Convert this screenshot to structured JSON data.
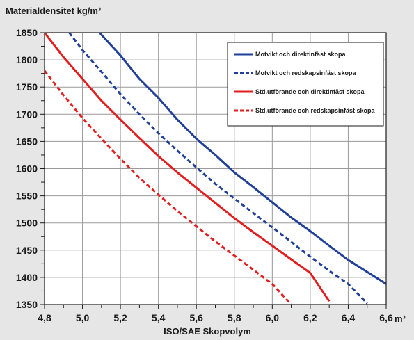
{
  "chart_data": {
    "type": "line",
    "ylabel": "Materialdensitet kg/m³",
    "xlabel": "ISO/SAE Skopvolym",
    "x_unit": "m³",
    "xlim": [
      4.8,
      6.6
    ],
    "ylim": [
      1350,
      1850
    ],
    "x_ticks": [
      "4,8",
      "5,0",
      "5,2",
      "5,4",
      "5,6",
      "5,8",
      "6,0",
      "6,2",
      "6,4",
      "6,6"
    ],
    "y_ticks": [
      "1350",
      "1400",
      "1450",
      "1500",
      "1550",
      "1600",
      "1650",
      "1700",
      "1750",
      "1800",
      "1850"
    ],
    "grid": true,
    "legend_position": "top-right",
    "series": [
      {
        "name": "Motvikt och direktinfäst skopa",
        "color": "#1f3f9a",
        "dash": "solid",
        "points": [
          [
            5.09,
            1850
          ],
          [
            5.2,
            1808
          ],
          [
            5.3,
            1765
          ],
          [
            5.4,
            1730
          ],
          [
            5.5,
            1690
          ],
          [
            5.6,
            1655
          ],
          [
            5.7,
            1625
          ],
          [
            5.8,
            1593
          ],
          [
            5.9,
            1566
          ],
          [
            6.0,
            1538
          ],
          [
            6.1,
            1510
          ],
          [
            6.2,
            1485
          ],
          [
            6.3,
            1458
          ],
          [
            6.4,
            1432
          ],
          [
            6.5,
            1410
          ],
          [
            6.6,
            1388
          ]
        ]
      },
      {
        "name": "Motvikt och redskapsinfäst skopa",
        "color": "#1f3f9a",
        "dash": "dashed",
        "points": [
          [
            4.93,
            1850
          ],
          [
            5.0,
            1818
          ],
          [
            5.1,
            1778
          ],
          [
            5.2,
            1737
          ],
          [
            5.3,
            1700
          ],
          [
            5.4,
            1665
          ],
          [
            5.5,
            1633
          ],
          [
            5.6,
            1602
          ],
          [
            5.7,
            1572
          ],
          [
            5.8,
            1545
          ],
          [
            5.9,
            1518
          ],
          [
            6.0,
            1492
          ],
          [
            6.1,
            1465
          ],
          [
            6.2,
            1438
          ],
          [
            6.3,
            1412
          ],
          [
            6.4,
            1388
          ],
          [
            6.5,
            1352
          ]
        ]
      },
      {
        "name": "Std.utförande och direktinfäst skopa",
        "color": "#e31e1e",
        "dash": "solid",
        "points": [
          [
            4.8,
            1850
          ],
          [
            4.9,
            1805
          ],
          [
            5.0,
            1765
          ],
          [
            5.1,
            1725
          ],
          [
            5.2,
            1690
          ],
          [
            5.3,
            1656
          ],
          [
            5.4,
            1623
          ],
          [
            5.5,
            1593
          ],
          [
            5.6,
            1565
          ],
          [
            5.7,
            1537
          ],
          [
            5.8,
            1509
          ],
          [
            5.9,
            1483
          ],
          [
            6.0,
            1458
          ],
          [
            6.1,
            1433
          ],
          [
            6.2,
            1408
          ],
          [
            6.3,
            1356
          ]
        ]
      },
      {
        "name": "Std.utförande och redskapsinfäst skopa",
        "color": "#e31e1e",
        "dash": "dashed",
        "points": [
          [
            4.8,
            1780
          ],
          [
            4.9,
            1735
          ],
          [
            5.0,
            1693
          ],
          [
            5.1,
            1655
          ],
          [
            5.2,
            1618
          ],
          [
            5.3,
            1583
          ],
          [
            5.4,
            1552
          ],
          [
            5.5,
            1522
          ],
          [
            5.6,
            1494
          ],
          [
            5.7,
            1466
          ],
          [
            5.8,
            1440
          ],
          [
            5.9,
            1414
          ],
          [
            6.0,
            1388
          ],
          [
            6.1,
            1350
          ]
        ]
      }
    ]
  }
}
